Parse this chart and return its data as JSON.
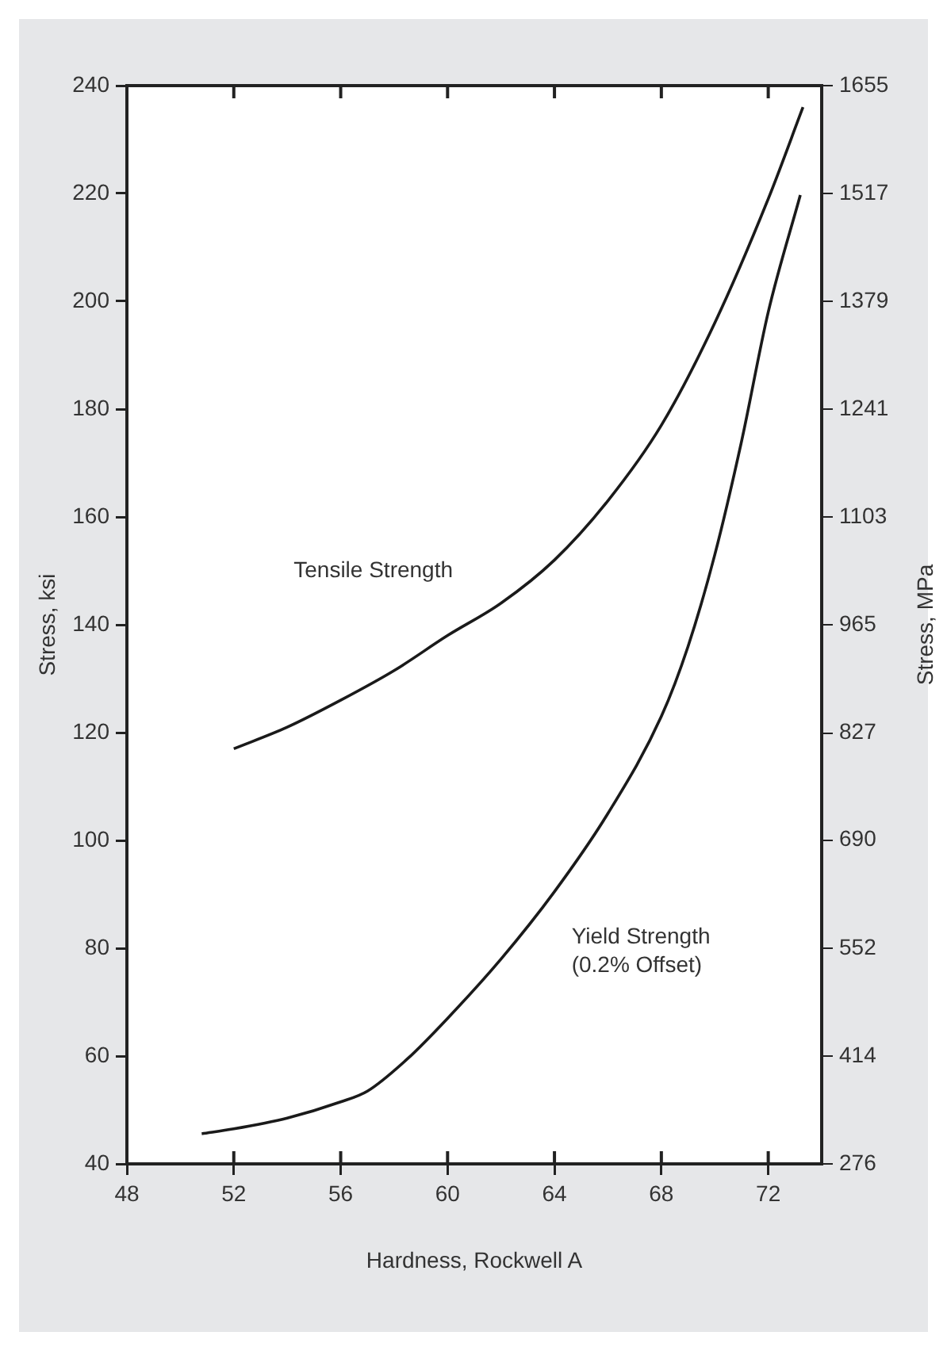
{
  "chart_data": {
    "type": "line",
    "xlabel": "Hardness, Rockwell A",
    "ylabel": "Stress, ksi",
    "y2label": "Stress, MPa",
    "xlim": [
      48,
      74
    ],
    "xticks": [
      48,
      52,
      56,
      60,
      64,
      68,
      72
    ],
    "ylim": [
      40,
      240
    ],
    "yticks": [
      40,
      60,
      80,
      100,
      120,
      140,
      160,
      180,
      200,
      220,
      240
    ],
    "y2lim": [
      276,
      1655
    ],
    "y2ticks": [
      276,
      414,
      552,
      690,
      827,
      965,
      1103,
      1241,
      1379,
      1517,
      1655
    ],
    "grid": false,
    "legend": false,
    "marker": "none",
    "line_style": "solid",
    "series": [
      {
        "name": "Tensile Strength",
        "color": "#1a1a1a",
        "x": [
          52,
          54,
          56,
          58,
          60,
          62,
          64,
          66,
          68,
          70,
          72,
          73.3
        ],
        "values": [
          117,
          121,
          126,
          131.5,
          138,
          144,
          152,
          163,
          177,
          196,
          219,
          236
        ]
      },
      {
        "name": "Yield Strength\n(0.2% Offset)",
        "color": "#1a1a1a",
        "x": [
          50.8,
          52,
          54,
          56,
          57,
          58.5,
          60,
          62,
          64,
          66,
          68,
          69,
          70,
          71,
          72,
          73.2
        ],
        "values": [
          45.6,
          46.5,
          48.5,
          51.5,
          53.5,
          59.5,
          67,
          78,
          90.5,
          105,
          123,
          136,
          153,
          174,
          198,
          219.7
        ]
      }
    ]
  }
}
